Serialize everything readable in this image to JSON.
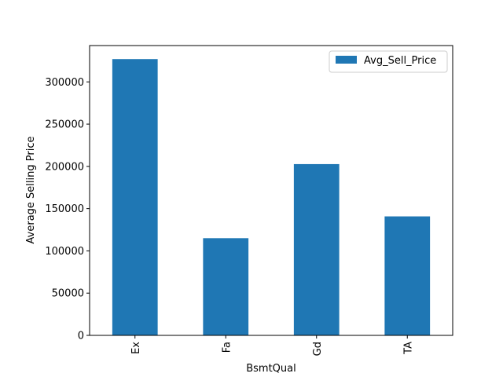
{
  "chart_data": {
    "type": "bar",
    "categories": [
      "Ex",
      "Fa",
      "Gd",
      "TA"
    ],
    "series": [
      {
        "name": "Avg_Sell_Price",
        "values": [
          327000,
          115000,
          202700,
          140800
        ]
      }
    ],
    "xlabel": "BsmtQual",
    "ylabel": "Average Selling Price",
    "ylim": [
      0,
      343000
    ],
    "yticks": [
      0,
      50000,
      100000,
      150000,
      200000,
      250000,
      300000
    ],
    "bar_color": "#1f77b4",
    "legend_position": "top-right",
    "grid": false
  }
}
